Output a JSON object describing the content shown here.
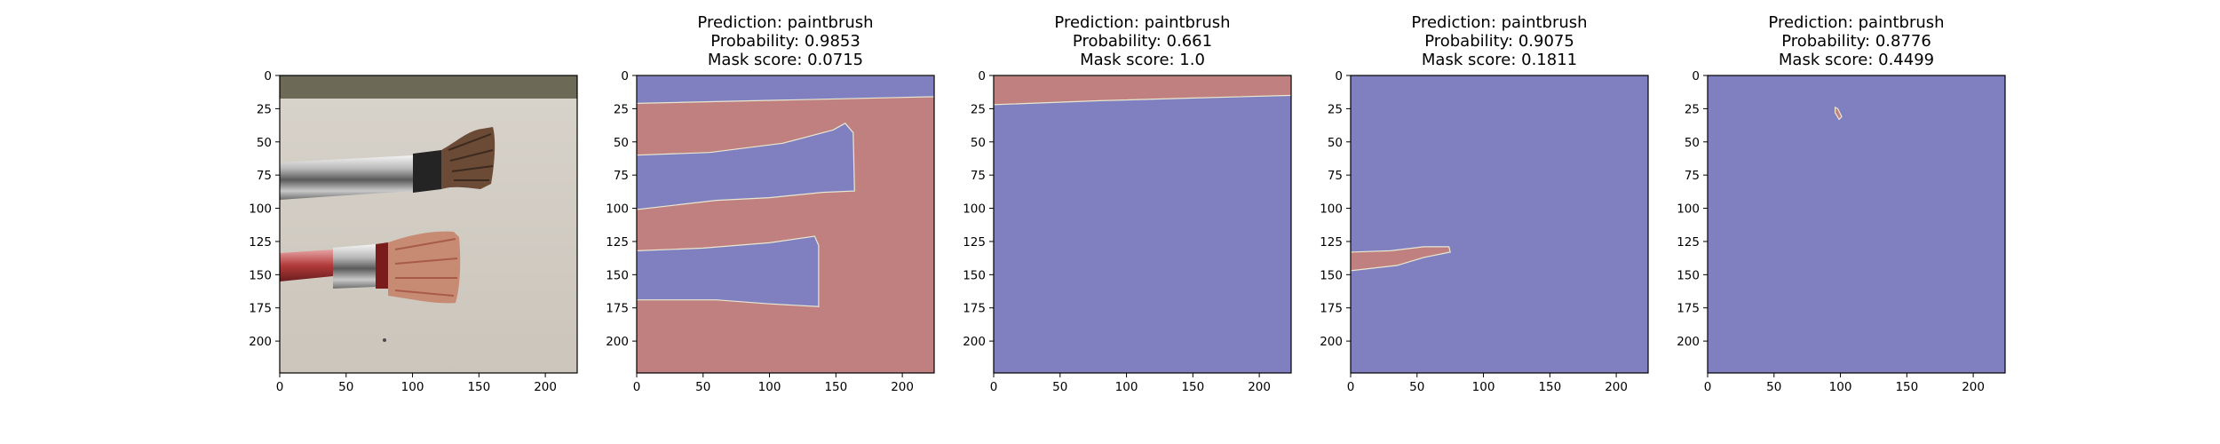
{
  "chart_data": [
    {
      "type": "image",
      "title": "",
      "image": "photo of two paintbrushes on a white surface",
      "xlim": [
        0,
        224
      ],
      "ylim": [
        224,
        0
      ],
      "xticks": [
        0,
        50,
        100,
        150,
        200
      ],
      "yticks": [
        0,
        25,
        50,
        75,
        100,
        125,
        150,
        175,
        200
      ]
    },
    {
      "type": "heatmap",
      "title_lines": [
        "Prediction: paintbrush",
        "Probability: 0.9853",
        "Mask score: 0.0715"
      ],
      "xlim": [
        0,
        224
      ],
      "ylim": [
        224,
        0
      ],
      "xticks": [
        0,
        50,
        100,
        150,
        200
      ],
      "yticks": [
        0,
        25,
        50,
        75,
        100,
        125,
        150,
        175,
        200
      ],
      "background_class": "kept",
      "regions": [
        {
          "class": "masked",
          "points": [
            [
              0,
              0
            ],
            [
              224,
              0
            ],
            [
              224,
              16
            ],
            [
              0,
              21
            ]
          ]
        },
        {
          "class": "masked",
          "points": [
            [
              0,
              60
            ],
            [
              55,
              58
            ],
            [
              110,
              51
            ],
            [
              148,
              41
            ],
            [
              157,
              36
            ],
            [
              163,
              43
            ],
            [
              164,
              87
            ],
            [
              140,
              88
            ],
            [
              100,
              92
            ],
            [
              60,
              94
            ],
            [
              0,
              101
            ]
          ]
        },
        {
          "class": "masked",
          "points": [
            [
              0,
              132
            ],
            [
              50,
              130
            ],
            [
              100,
              126
            ],
            [
              134,
              121
            ],
            [
              137,
              128
            ],
            [
              137,
              174
            ],
            [
              100,
              172
            ],
            [
              60,
              169
            ],
            [
              0,
              169
            ]
          ]
        }
      ]
    },
    {
      "type": "heatmap",
      "title_lines": [
        "Prediction: paintbrush",
        "Probability: 0.661",
        "Mask score: 1.0"
      ],
      "xlim": [
        0,
        224
      ],
      "ylim": [
        224,
        0
      ],
      "xticks": [
        0,
        50,
        100,
        150,
        200
      ],
      "yticks": [
        0,
        25,
        50,
        75,
        100,
        125,
        150,
        175,
        200
      ],
      "background_class": "masked",
      "regions": [
        {
          "class": "kept",
          "points": [
            [
              0,
              0
            ],
            [
              224,
              0
            ],
            [
              224,
              15
            ],
            [
              150,
              17
            ],
            [
              80,
              19
            ],
            [
              0,
              22
            ]
          ]
        }
      ]
    },
    {
      "type": "heatmap",
      "title_lines": [
        "Prediction: paintbrush",
        "Probability: 0.9075",
        "Mask score: 0.1811"
      ],
      "xlim": [
        0,
        224
      ],
      "ylim": [
        224,
        0
      ],
      "xticks": [
        0,
        50,
        100,
        150,
        200
      ],
      "yticks": [
        0,
        25,
        50,
        75,
        100,
        125,
        150,
        175,
        200
      ],
      "background_class": "masked",
      "regions": [
        {
          "class": "kept",
          "points": [
            [
              0,
              133
            ],
            [
              30,
              132
            ],
            [
              55,
              129
            ],
            [
              74,
              129
            ],
            [
              75,
              133
            ],
            [
              55,
              137
            ],
            [
              35,
              143
            ],
            [
              0,
              147
            ]
          ]
        }
      ]
    },
    {
      "type": "heatmap",
      "title_lines": [
        "Prediction: paintbrush",
        "Probability: 0.8776",
        "Mask score: 0.4499"
      ],
      "xlim": [
        0,
        224
      ],
      "ylim": [
        224,
        0
      ],
      "xticks": [
        0,
        50,
        100,
        150,
        200
      ],
      "yticks": [
        0,
        25,
        50,
        75,
        100,
        125,
        150,
        175,
        200
      ],
      "background_class": "masked",
      "regions": [
        {
          "class": "kept",
          "points": [
            [
              96,
              24
            ],
            [
              98,
              25
            ],
            [
              101,
              31
            ],
            [
              99,
              33
            ],
            [
              96,
              28
            ]
          ]
        }
      ]
    }
  ],
  "colors": {
    "masked": "#8080c0",
    "kept": "#c08080",
    "boundary": "#e8e8d0",
    "axis": "#000000"
  }
}
